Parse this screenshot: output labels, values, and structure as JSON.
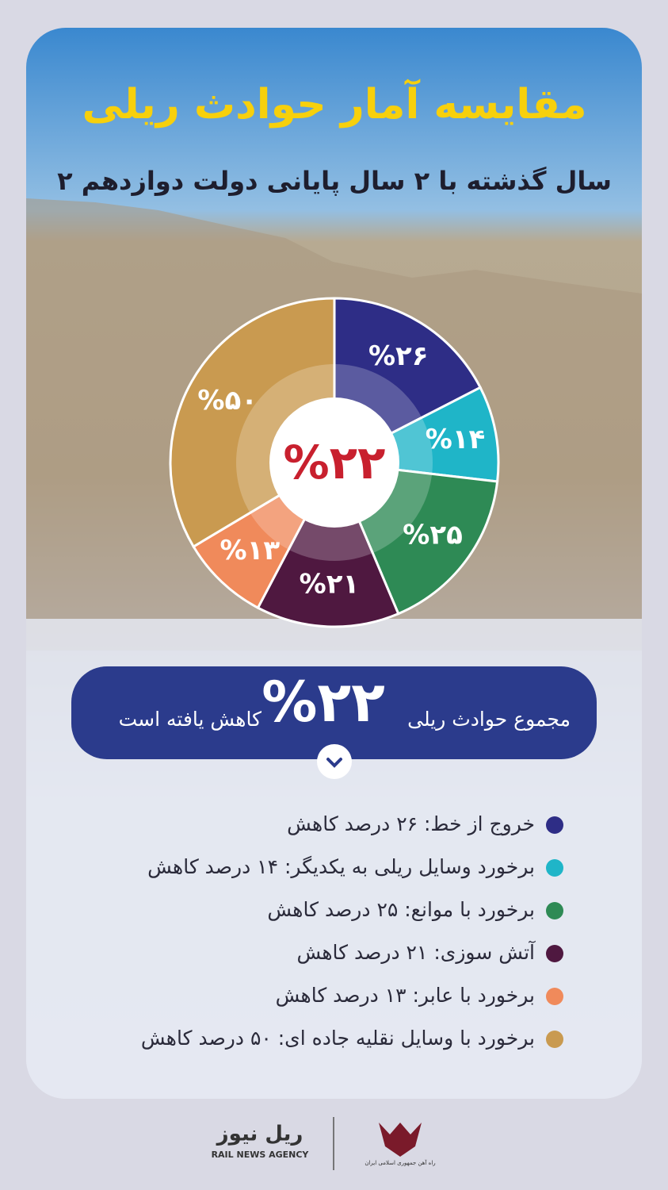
{
  "header": {
    "title": "مقایسه آمار حوادث ریلی",
    "subtitle": "۲ سال گذشته با ۲ سال پایانی دولت دوازدهم"
  },
  "chart_data": {
    "type": "pie",
    "categories": [
      "خروج از خط:  ۲۶ درصد کاهش",
      "برخورد وسایل ریلی به یکدیگر: ۱۴ درصد کاهش",
      "برخورد با موانع: ۲۵ درصد کاهش",
      "آتش سوزی: ۲۱ درصد کاهش",
      "برخورد با عابر: ۱۳ درصد کاهش",
      "برخورد با وسایل نقلیه جاده ای: ۵۰ درصد کاهش"
    ],
    "values": [
      26,
      14,
      25,
      21,
      13,
      50
    ],
    "value_labels": [
      "%۲۶",
      "%۱۴",
      "%۲۵",
      "%۲۱",
      "%۱۳",
      "%۵۰"
    ],
    "colors": [
      "#2e2d86",
      "#1fb5c8",
      "#2e8a55",
      "#4f1840",
      "#f08a5b",
      "#c99a50"
    ],
    "center_label": "%۲۲"
  },
  "summary": {
    "text_before": "مجموع حوادث ریلی",
    "value_label": "%۲۲",
    "text_after": "کاهش یافته است"
  },
  "footer": {
    "logo_fa": "ریل نیوز",
    "logo_en": "RAIL NEWS AGENCY",
    "org": "راه آهن جمهوری اسلامی ایران"
  }
}
